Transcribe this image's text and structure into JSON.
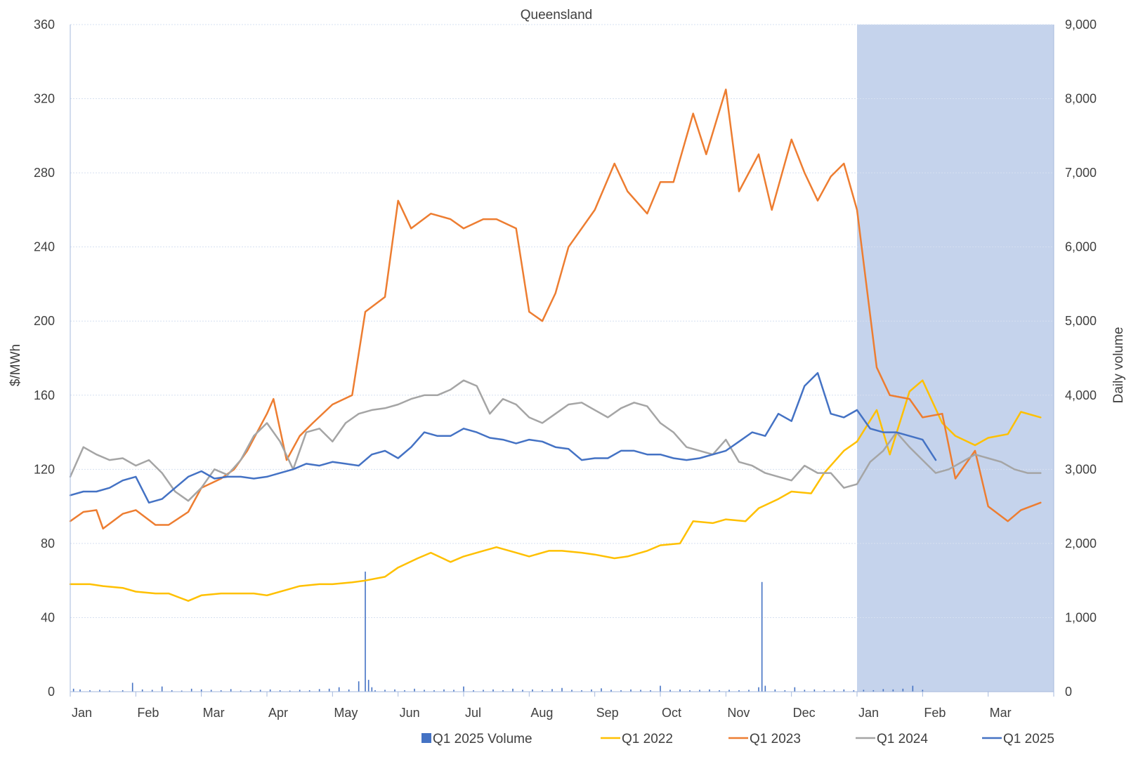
{
  "chart_data": {
    "type": "line",
    "title": "Queensland",
    "ylabel": "$/MWh",
    "y2label": "Daily volume",
    "ylim": [
      0,
      360
    ],
    "y2lim": [
      0,
      9000
    ],
    "yticks": [
      "0",
      "40",
      "80",
      "120",
      "160",
      "200",
      "240",
      "280",
      "320",
      "360"
    ],
    "y2ticks": [
      "0",
      "1,000",
      "2,000",
      "3,000",
      "4,000",
      "5,000",
      "6,000",
      "7,000",
      "8,000",
      "9,000"
    ],
    "x_labels": [
      "Jan",
      "Feb",
      "Mar",
      "Apr",
      "May",
      "Jun",
      "Jul",
      "Aug",
      "Sep",
      "Oct",
      "Nov",
      "Dec",
      "Jan",
      "Feb",
      "Mar"
    ],
    "x_months": 15,
    "grid": true,
    "legend_position": "bottom",
    "shaded_region": {
      "from_month": 12,
      "to_month": 15,
      "color": "#c5d3ec"
    },
    "colors": {
      "q1_2022": "#ffc000",
      "q1_2023": "#ed7d31",
      "q1_2024": "#a5a5a5",
      "q1_2025": "#4472c4",
      "volume": "#4472c4",
      "grid": "#d6e0f0",
      "axis": "#a6b9dd"
    },
    "legend": [
      "Q1 2025 Volume",
      "Q1 2022",
      "Q1 2023",
      "Q1 2024",
      "Q1 2025"
    ],
    "series": [
      {
        "name": "Q1 2022",
        "key": "q1_2022",
        "x": [
          0,
          0.3,
          0.5,
          0.8,
          1,
          1.3,
          1.5,
          1.8,
          2,
          2.3,
          2.5,
          2.8,
          3,
          3.3,
          3.5,
          3.8,
          4,
          4.3,
          4.5,
          4.8,
          5,
          5.3,
          5.5,
          5.8,
          6,
          6.3,
          6.5,
          6.8,
          7,
          7.3,
          7.5,
          7.8,
          8,
          8.3,
          8.5,
          8.8,
          9,
          9.3,
          9.5,
          9.8,
          10,
          10.3,
          10.5,
          10.8,
          11,
          11.3,
          11.5,
          11.8,
          12,
          12.3,
          12.5,
          12.8,
          13,
          13.3,
          13.5,
          13.8,
          14,
          14.3,
          14.5,
          14.8
        ],
        "y": [
          58,
          58,
          57,
          56,
          54,
          53,
          53,
          49,
          52,
          53,
          53,
          53,
          52,
          55,
          57,
          58,
          58,
          59,
          60,
          62,
          67,
          72,
          75,
          70,
          73,
          76,
          78,
          75,
          73,
          76,
          76,
          75,
          74,
          72,
          73,
          76,
          79,
          80,
          92,
          91,
          93,
          92,
          99,
          104,
          108,
          107,
          118,
          130,
          135,
          152,
          128,
          162,
          168,
          145,
          138,
          133,
          137,
          139,
          151,
          148
        ]
      },
      {
        "name": "Q1 2023",
        "key": "q1_2023",
        "x": [
          0,
          0.2,
          0.4,
          0.5,
          0.8,
          1,
          1.3,
          1.5,
          1.8,
          2,
          2.3,
          2.5,
          2.7,
          3,
          3.1,
          3.3,
          3.5,
          3.7,
          4,
          4.3,
          4.5,
          4.8,
          5,
          5.2,
          5.5,
          5.8,
          6,
          6.3,
          6.5,
          6.8,
          7,
          7.2,
          7.4,
          7.6,
          8,
          8.3,
          8.5,
          8.8,
          9,
          9.2,
          9.5,
          9.7,
          10,
          10.2,
          10.5,
          10.7,
          11,
          11.2,
          11.4,
          11.6,
          11.8,
          12,
          12.3,
          12.5,
          12.8,
          13,
          13.3,
          13.5,
          13.8,
          14,
          14.3,
          14.5,
          14.8
        ],
        "y": [
          92,
          97,
          98,
          88,
          96,
          98,
          90,
          90,
          97,
          110,
          115,
          120,
          130,
          150,
          158,
          125,
          138,
          145,
          155,
          160,
          205,
          213,
          265,
          250,
          258,
          255,
          250,
          255,
          255,
          250,
          205,
          200,
          215,
          240,
          260,
          285,
          270,
          258,
          275,
          275,
          312,
          290,
          325,
          270,
          290,
          260,
          298,
          280,
          265,
          278,
          285,
          260,
          175,
          160,
          158,
          148,
          150,
          115,
          130,
          100,
          92,
          98,
          102
        ]
      },
      {
        "name": "Q1 2024",
        "key": "q1_2024",
        "x": [
          0,
          0.2,
          0.4,
          0.6,
          0.8,
          1,
          1.2,
          1.4,
          1.6,
          1.8,
          2,
          2.2,
          2.4,
          2.6,
          2.8,
          3,
          3.2,
          3.4,
          3.6,
          3.8,
          4,
          4.2,
          4.4,
          4.6,
          4.8,
          5,
          5.2,
          5.4,
          5.6,
          5.8,
          6,
          6.2,
          6.4,
          6.6,
          6.8,
          7,
          7.2,
          7.4,
          7.6,
          7.8,
          8,
          8.2,
          8.4,
          8.6,
          8.8,
          9,
          9.2,
          9.4,
          9.6,
          9.8,
          10,
          10.2,
          10.4,
          10.6,
          10.8,
          11,
          11.2,
          11.4,
          11.6,
          11.8,
          12,
          12.2,
          12.4,
          12.6,
          12.8,
          13,
          13.2,
          13.4,
          13.6,
          13.8,
          14,
          14.2,
          14.4,
          14.6,
          14.8
        ],
        "y": [
          116,
          132,
          128,
          125,
          126,
          122,
          125,
          118,
          108,
          103,
          110,
          120,
          117,
          125,
          138,
          145,
          135,
          120,
          140,
          142,
          135,
          145,
          150,
          152,
          153,
          155,
          158,
          160,
          160,
          163,
          168,
          165,
          150,
          158,
          155,
          148,
          145,
          150,
          155,
          156,
          152,
          148,
          153,
          156,
          154,
          145,
          140,
          132,
          130,
          128,
          136,
          124,
          122,
          118,
          116,
          114,
          122,
          118,
          118,
          110,
          112,
          124,
          130,
          140,
          132,
          125,
          118,
          120,
          124,
          128,
          126,
          124,
          120,
          118,
          118
        ]
      },
      {
        "name": "Q1 2025",
        "key": "q1_2025",
        "x": [
          0,
          0.2,
          0.4,
          0.6,
          0.8,
          1,
          1.2,
          1.4,
          1.6,
          1.8,
          2,
          2.2,
          2.4,
          2.6,
          2.8,
          3,
          3.2,
          3.4,
          3.6,
          3.8,
          4,
          4.2,
          4.4,
          4.6,
          4.8,
          5,
          5.2,
          5.4,
          5.6,
          5.8,
          6,
          6.2,
          6.4,
          6.6,
          6.8,
          7,
          7.2,
          7.4,
          7.6,
          7.8,
          8,
          8.2,
          8.4,
          8.6,
          8.8,
          9,
          9.2,
          9.4,
          9.6,
          9.8,
          10,
          10.2,
          10.4,
          10.6,
          10.8,
          11,
          11.2,
          11.4,
          11.6,
          11.8,
          12,
          12.2,
          12.4,
          12.6,
          12.8,
          13,
          13.2
        ],
        "y": [
          106,
          108,
          108,
          110,
          114,
          116,
          102,
          104,
          110,
          116,
          119,
          115,
          116,
          116,
          115,
          116,
          118,
          120,
          123,
          122,
          124,
          123,
          122,
          128,
          130,
          126,
          132,
          140,
          138,
          138,
          142,
          140,
          137,
          136,
          134,
          136,
          135,
          132,
          131,
          125,
          126,
          126,
          130,
          130,
          128,
          128,
          126,
          125,
          126,
          128,
          130,
          135,
          140,
          138,
          150,
          146,
          165,
          172,
          150,
          148,
          152,
          142,
          140,
          140,
          138,
          136,
          125
        ]
      }
    ],
    "volume": {
      "name": "Q1 2025 Volume",
      "x": [
        0.05,
        0.15,
        0.3,
        0.45,
        0.6,
        0.8,
        0.95,
        1.1,
        1.25,
        1.4,
        1.55,
        1.7,
        1.85,
        2.0,
        2.15,
        2.3,
        2.45,
        2.6,
        2.75,
        2.9,
        3.05,
        3.2,
        3.35,
        3.5,
        3.65,
        3.8,
        3.95,
        4.1,
        4.25,
        4.4,
        4.5,
        4.55,
        4.6,
        4.65,
        4.8,
        4.95,
        5.1,
        5.25,
        5.4,
        5.55,
        5.7,
        5.85,
        6.0,
        6.15,
        6.3,
        6.45,
        6.6,
        6.75,
        6.9,
        7.05,
        7.2,
        7.35,
        7.5,
        7.65,
        7.8,
        7.95,
        8.1,
        8.25,
        8.4,
        8.55,
        8.7,
        8.85,
        9.0,
        9.15,
        9.3,
        9.45,
        9.6,
        9.75,
        9.9,
        10.05,
        10.2,
        10.35,
        10.5,
        10.55,
        10.6,
        10.75,
        10.9,
        11.05,
        11.2,
        11.35,
        11.5,
        11.65,
        11.8,
        11.95,
        12.1,
        12.25,
        12.4,
        12.55,
        12.7,
        12.85,
        13.0
      ],
      "values": [
        40,
        30,
        20,
        25,
        15,
        20,
        120,
        30,
        25,
        70,
        20,
        15,
        40,
        30,
        25,
        20,
        35,
        15,
        20,
        25,
        30,
        20,
        15,
        25,
        20,
        35,
        40,
        60,
        30,
        140,
        1620,
        160,
        60,
        20,
        25,
        30,
        20,
        40,
        25,
        20,
        30,
        25,
        70,
        20,
        25,
        30,
        20,
        40,
        25,
        30,
        20,
        35,
        50,
        25,
        20,
        30,
        45,
        25,
        20,
        30,
        25,
        20,
        80,
        25,
        30,
        20,
        25,
        30,
        20,
        25,
        20,
        25,
        60,
        1480,
        80,
        30,
        20,
        60,
        25,
        30,
        20,
        25,
        30,
        20,
        25,
        20,
        35,
        30,
        40,
        80,
        25
      ]
    }
  }
}
